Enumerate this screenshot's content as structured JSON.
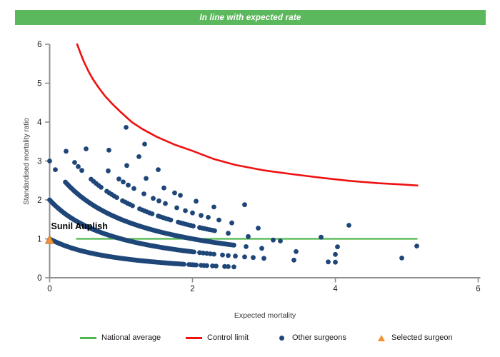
{
  "header": {
    "title": "In line with expected rate"
  },
  "colors": {
    "header_green": "#5cb85c",
    "national_average_green": "#4fb74d",
    "control_limit_red": "#ee1111",
    "surgeon_navy": "#1f4678",
    "selected_orange": "#f29138",
    "selected_orange_border": "#bf7226",
    "axis_gray": "#8f8f8f",
    "tick_text": "#1a1a1a",
    "axis_title_text": "#3c3c3c"
  },
  "legend": {
    "items": [
      {
        "label": "National average",
        "glyph": "line-green"
      },
      {
        "label": "Control limit",
        "glyph": "line-red"
      },
      {
        "label": "Other surgeons",
        "glyph": "dot-navy"
      },
      {
        "label": "Selected surgeon",
        "glyph": "triangle-orange"
      }
    ]
  },
  "chart_data": {
    "type": "scatter",
    "title": "In line with expected rate",
    "xlabel": "Expected mortality",
    "ylabel": "Standardised mortality ratio",
    "xlim": [
      0,
      6
    ],
    "ylim": [
      0,
      6
    ],
    "x_ticks": [
      0,
      2,
      4,
      6
    ],
    "y_ticks": [
      0,
      1,
      2,
      3,
      4,
      5,
      6
    ],
    "grid": false,
    "legend_position": "bottom",
    "national_average": {
      "y": 1,
      "x_range": [
        0.37,
        5.15
      ]
    },
    "control_limit": {
      "points": [
        [
          0.385,
          6.0
        ],
        [
          0.43,
          5.78
        ],
        [
          0.48,
          5.55
        ],
        [
          0.54,
          5.32
        ],
        [
          0.6,
          5.12
        ],
        [
          0.68,
          4.9
        ],
        [
          0.77,
          4.68
        ],
        [
          0.87,
          4.48
        ],
        [
          1.0,
          4.25
        ],
        [
          1.15,
          4.0
        ],
        [
          1.3,
          3.82
        ],
        [
          1.5,
          3.62
        ],
        [
          1.75,
          3.42
        ],
        [
          2.0,
          3.26
        ],
        [
          2.3,
          3.05
        ],
        [
          2.6,
          2.9
        ],
        [
          3.0,
          2.76
        ],
        [
          3.4,
          2.66
        ],
        [
          3.8,
          2.57
        ],
        [
          4.2,
          2.49
        ],
        [
          4.6,
          2.43
        ],
        [
          4.9,
          2.4
        ],
        [
          5.15,
          2.37
        ]
      ]
    },
    "other_surgeons": {
      "model": "smr = deaths / (1 + expected_mortality)",
      "bands": [
        {
          "deaths": 1,
          "dense_segments": [
            [
              0.02,
              1.88,
              0.02
            ],
            [
              1.95,
              2.05,
              0.025
            ],
            [
              2.12,
              2.2,
              0.04
            ]
          ],
          "points": [
            2.28,
            2.33,
            2.45,
            2.5,
            2.58
          ]
        },
        {
          "deaths": 2,
          "dense_segments": [
            [
              0.0,
              2.02,
              0.02
            ],
            [
              2.1,
              2.3,
              0.05
            ]
          ],
          "points": [
            2.42,
            2.5,
            2.6,
            2.73,
            2.85,
            3.0,
            3.42,
            3.9,
            4.0
          ]
        },
        {
          "deaths": 3,
          "dense_segments": [
            [
              0.22,
              2.58,
              0.02
            ]
          ],
          "points": [
            0.0,
            0.08,
            2.75,
            2.97,
            3.45,
            4.0,
            4.93
          ]
        },
        {
          "deaths": 4,
          "dense_segments": [
            [
              0.58,
              0.72,
              0.035
            ],
            [
              0.8,
              0.95,
              0.035
            ],
            [
              1.02,
              1.18,
              0.035
            ],
            [
              1.26,
              1.44,
              0.035
            ],
            [
              1.52,
              1.72,
              0.035
            ],
            [
              1.8,
              2.02,
              0.035
            ],
            [
              2.1,
              2.32,
              0.035
            ]
          ],
          "points": [
            0.23,
            0.35,
            0.4,
            0.45,
            2.5,
            2.78,
            3.13,
            3.23,
            4.03
          ]
        },
        {
          "deaths": 5,
          "dense_segments": [],
          "points": [
            0.51,
            0.82,
            0.97,
            1.03,
            1.1,
            1.18,
            1.32,
            1.45,
            1.53,
            1.62,
            1.78,
            1.9,
            2.0,
            2.12,
            2.22,
            2.37,
            2.55,
            2.92,
            3.8,
            5.14
          ]
        },
        {
          "deaths": 6,
          "dense_segments": [],
          "points": [
            0.83,
            1.08,
            1.35,
            1.6,
            1.75,
            1.83,
            2.05,
            2.3
          ]
        },
        {
          "deaths": 7,
          "dense_segments": [],
          "points": [
            1.25,
            1.52,
            2.73,
            4.19
          ]
        },
        {
          "deaths": 8,
          "dense_segments": [],
          "points": [
            1.07,
            1.33
          ]
        }
      ]
    },
    "selected_surgeon": {
      "label": "Sunil Auplish",
      "x": 0,
      "y": 0.97
    }
  }
}
